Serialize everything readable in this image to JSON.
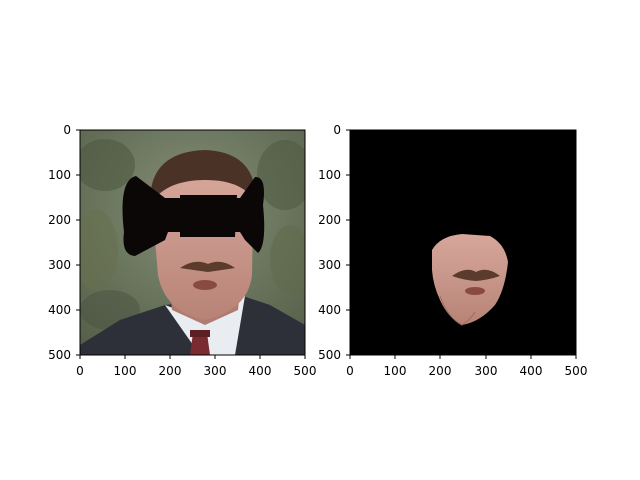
{
  "figure": {
    "left_panel": {
      "title": "",
      "x_ticks": [
        "0",
        "100",
        "200",
        "300",
        "400",
        "500"
      ],
      "y_ticks": [
        "0",
        "100",
        "200",
        "300",
        "400",
        "500"
      ],
      "content": "portrait-with-black-bowtie-mask"
    },
    "right_panel": {
      "title": "",
      "x_ticks": [
        "0",
        "100",
        "200",
        "300",
        "400",
        "500"
      ],
      "y_ticks": [
        "0",
        "100",
        "200",
        "300",
        "400",
        "500"
      ],
      "content": "masked-lower-face-on-black"
    },
    "colors": {
      "background": "#ffffff",
      "mask_black": "#000000",
      "bowtie": "#0b0706",
      "skin": "#c9958a",
      "suit": "#2d3038",
      "shirt": "#e9ecf1",
      "tie": "#7a2b2f",
      "hair": "#4a3326"
    }
  }
}
